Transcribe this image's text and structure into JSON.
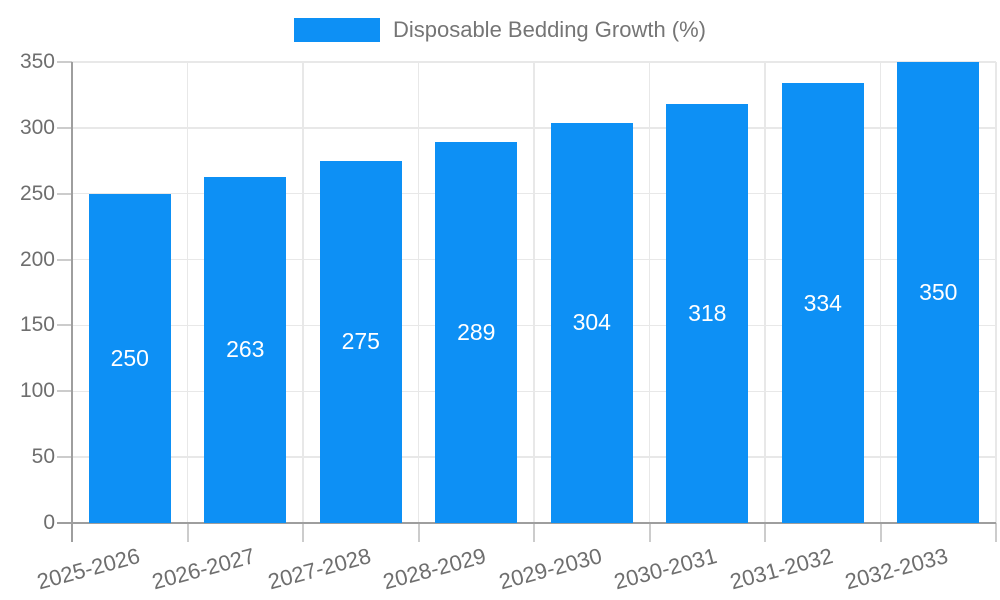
{
  "chart_data": {
    "type": "bar",
    "title": "",
    "legend_label": "Disposable Bedding Growth (%)",
    "legend_position": "top",
    "categories": [
      "2025-2026",
      "2026-2027",
      "2027-2028",
      "2028-2029",
      "2029-2030",
      "2030-2031",
      "2031-2032",
      "2032-2033"
    ],
    "values": [
      250,
      263,
      275,
      289,
      304,
      318,
      334,
      350
    ],
    "value_labels": [
      "250",
      "263",
      "275",
      "289",
      "304",
      "318",
      "334",
      "350"
    ],
    "xlabel": "",
    "ylabel": "",
    "ylim": [
      0,
      350
    ],
    "yticks": [
      0,
      50,
      100,
      150,
      200,
      250,
      300,
      350
    ],
    "grid": true,
    "colors": {
      "bar": "#0d90f5",
      "value_label": "#ffffff",
      "axis_text": "#6e6e6e",
      "legend_text": "#757575",
      "grid": "#e8e8e8",
      "tick": "#cccccc",
      "axis_line": "#9e9e9e",
      "background": "#ffffff"
    }
  }
}
